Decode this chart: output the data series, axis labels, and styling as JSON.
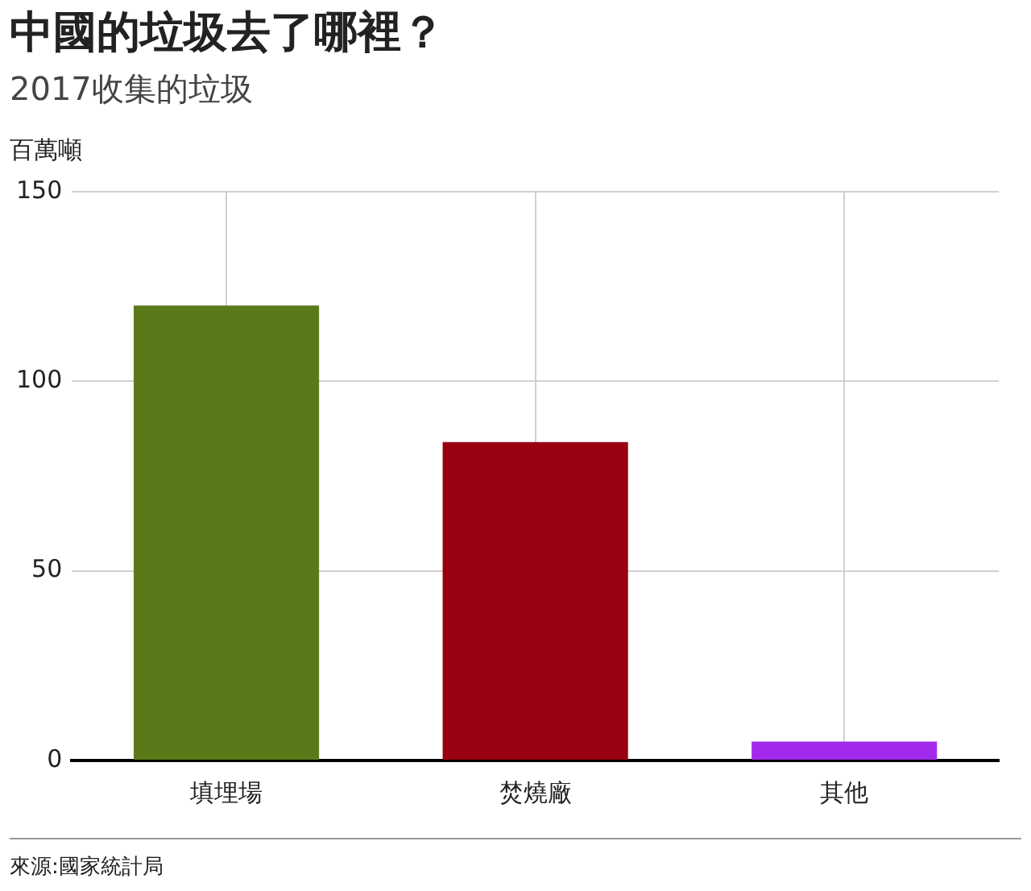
{
  "chart_data": {
    "type": "bar",
    "title": "中國的垃圾去了哪裡？",
    "subtitle": "2017收集的垃圾",
    "ylabel": "百萬噸",
    "categories": [
      "填埋場",
      "焚燒廠",
      "其他"
    ],
    "values": [
      120,
      84,
      5
    ],
    "colors": [
      "#5a7a1a",
      "#990010",
      "#a32aeb"
    ],
    "ylim": [
      0,
      150
    ],
    "yticks": [
      0,
      50,
      100,
      150
    ],
    "grid": true,
    "legend": false,
    "annotations": [
      "來源:國家統計局"
    ]
  }
}
